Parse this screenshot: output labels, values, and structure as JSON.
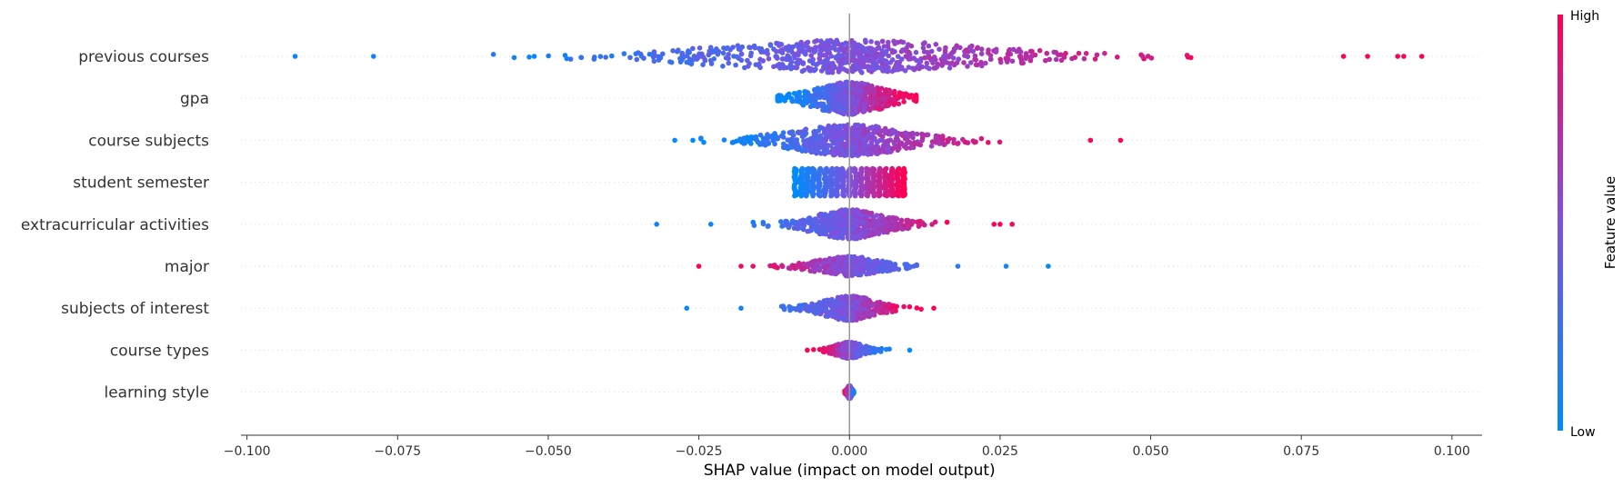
{
  "chart_data": {
    "type": "scatter",
    "subtype": "shap-beeswarm",
    "title": "",
    "xlabel": "SHAP value (impact on model output)",
    "ylabel": "",
    "xlim": [
      -0.101,
      0.105
    ],
    "xticks": [
      -0.1,
      -0.075,
      -0.05,
      -0.025,
      0.0,
      0.025,
      0.05,
      0.075,
      0.1
    ],
    "xtick_labels": [
      "−0.100",
      "−0.075",
      "−0.050",
      "−0.025",
      "0.000",
      "0.025",
      "0.050",
      "0.075",
      "0.100"
    ],
    "grid": "horizontal-dotted-per-feature",
    "colorbar": {
      "title": "Feature value",
      "high_label": "High",
      "low_label": "Low",
      "low_color": "#008bfb",
      "mid_color": "#7c52e0",
      "high_color": "#ff0052",
      "placement": "right"
    },
    "zero_line_color": "#999999",
    "features": [
      {
        "name": "previous courses",
        "range": [
          -0.092,
          0.095
        ],
        "trend": "high-positive",
        "outliers": [
          -0.092,
          -0.079,
          0.082,
          0.086,
          0.091,
          0.092,
          0.095
        ],
        "bulk_spread": 0.045,
        "density": 1.0
      },
      {
        "name": "gpa",
        "range": [
          -0.014,
          0.013
        ],
        "trend": "high-positive",
        "outliers": [],
        "bulk_spread": 0.012,
        "density": 1.0
      },
      {
        "name": "course subjects",
        "range": [
          -0.029,
          0.045
        ],
        "trend": "high-positive",
        "outliers": [
          -0.029,
          -0.026,
          0.04,
          0.045
        ],
        "bulk_spread": 0.02,
        "density": 0.95
      },
      {
        "name": "student semester",
        "range": [
          -0.009,
          0.009
        ],
        "trend": "high-positive",
        "discrete_levels": [
          -0.009,
          -0.008,
          -0.007,
          -0.006,
          -0.005,
          -0.004,
          -0.003,
          -0.002,
          -0.001,
          0.0,
          0.001,
          0.002,
          0.003,
          0.004,
          0.005,
          0.006,
          0.007,
          0.008,
          0.009
        ],
        "outliers": [],
        "bulk_spread": 0.009,
        "density": 1.0
      },
      {
        "name": "extracurricular activities",
        "range": [
          -0.032,
          0.027
        ],
        "trend": "high-positive",
        "outliers": [
          -0.032,
          -0.023,
          0.024,
          0.025,
          0.027
        ],
        "bulk_spread": 0.012,
        "density": 0.9
      },
      {
        "name": "major",
        "range": [
          -0.025,
          0.033
        ],
        "trend": "high-negative",
        "outliers": [
          -0.025,
          -0.018,
          -0.016,
          0.018,
          0.026,
          0.033
        ],
        "bulk_spread": 0.011,
        "density": 0.6
      },
      {
        "name": "subjects of interest",
        "range": [
          -0.027,
          0.014
        ],
        "trend": "high-positive",
        "outliers": [
          -0.027,
          -0.018,
          0.014
        ],
        "bulk_spread": 0.009,
        "density": 0.75
      },
      {
        "name": "course types",
        "range": [
          -0.007,
          0.01
        ],
        "trend": "high-negative",
        "outliers": [
          -0.007,
          0.01
        ],
        "bulk_spread": 0.005,
        "density": 0.5
      },
      {
        "name": "learning style",
        "range": [
          -0.001,
          0.001
        ],
        "trend": "high-negative",
        "outliers": [],
        "bulk_spread": 0.0008,
        "density": 0.4
      }
    ]
  }
}
